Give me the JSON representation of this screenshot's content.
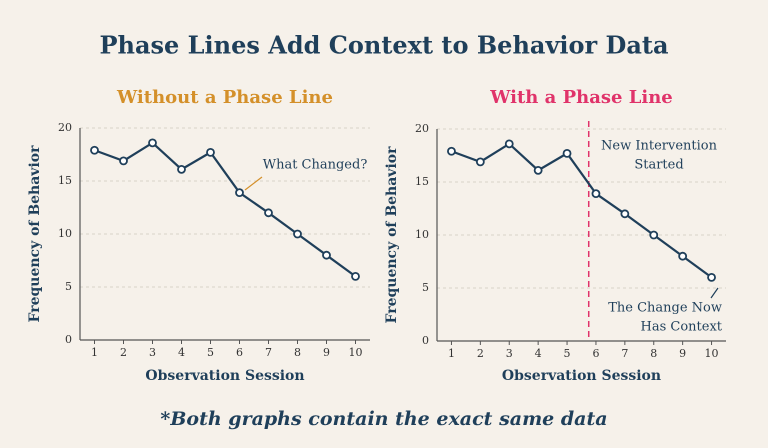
{
  "title": "Phase Lines Add Context to Behavior Data",
  "footnote": "*Both graphs contain the exact same data",
  "chart_data": [
    {
      "type": "line",
      "title": "Without a Phase Line",
      "title_color": "#d4902a",
      "x_label": "Observation Session",
      "y_label": "Frequency of Behavior",
      "x": [
        1,
        2,
        3,
        4,
        5,
        6,
        7,
        8,
        9,
        10
      ],
      "series": [
        {
          "color": "#1f3f5a",
          "values": [
            17.9,
            16.9,
            18.6,
            16.1,
            17.7,
            13.9,
            12,
            10,
            8,
            6
          ]
        }
      ],
      "xlim": [
        0.5,
        10.5
      ],
      "ylim": [
        0,
        20
      ],
      "xticks": [
        1,
        2,
        3,
        4,
        5,
        6,
        7,
        8,
        9,
        10
      ],
      "yticks": [
        0,
        5,
        10,
        15,
        20
      ],
      "grid": true,
      "annotations": [
        {
          "lines": [
            "What Changed?"
          ]
        }
      ]
    },
    {
      "type": "line",
      "title": "With a Phase Line",
      "title_color": "#e0336a",
      "x_label": "Observation Session",
      "y_label": "Frequency of Behavior",
      "x": [
        1,
        2,
        3,
        4,
        5,
        6,
        7,
        8,
        9,
        10
      ],
      "series": [
        {
          "color": "#1f3f5a",
          "values": [
            17.9,
            16.9,
            18.6,
            16.1,
            17.7,
            13.9,
            12,
            10,
            8,
            6
          ]
        }
      ],
      "xlim": [
        0.5,
        10.5
      ],
      "ylim": [
        0,
        20
      ],
      "xticks": [
        1,
        2,
        3,
        4,
        5,
        6,
        7,
        8,
        9,
        10
      ],
      "yticks": [
        0,
        5,
        10,
        15,
        20
      ],
      "grid": true,
      "phase_line": {
        "x": 5.75,
        "color": "#e0336a"
      },
      "annotations": [
        {
          "lines": [
            "New Intervention",
            "Started"
          ]
        },
        {
          "lines": [
            "The Change Now",
            "Has Context"
          ]
        }
      ]
    }
  ]
}
